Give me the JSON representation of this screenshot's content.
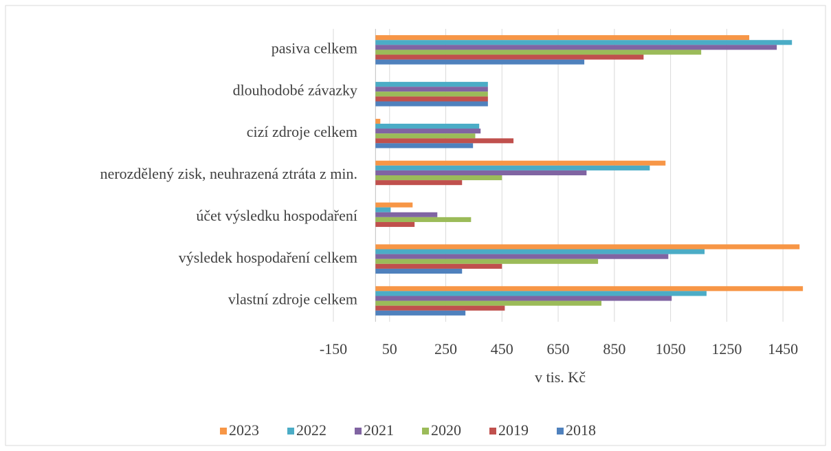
{
  "chart_data": {
    "type": "hbar",
    "xlabel": "v tis. Kč",
    "categories": [
      "vlastní zdroje celkem",
      "výsledek hospodaření celkem",
      "účet výsledku hospodaření",
      "nerozdělený zisk, neuhrazená ztráta z min.",
      "cizí zdroje celkem",
      "dlouhodobé závazky",
      "pasiva celkem"
    ],
    "series": [
      {
        "name": "2023",
        "color": "#f79646",
        "values": [
          1521,
          1509,
          132,
          1032,
          17,
          0,
          1330
        ]
      },
      {
        "name": "2022",
        "color": "#4bacc6",
        "values": [
          1178,
          1171,
          54,
          976,
          369,
          400,
          1482
        ]
      },
      {
        "name": "2021",
        "color": "#8064a2",
        "values": [
          1054,
          1042,
          220,
          751,
          374,
          400,
          1428
        ]
      },
      {
        "name": "2020",
        "color": "#9bbb59",
        "values": [
          804,
          792,
          340,
          450,
          355,
          400,
          1159
        ]
      },
      {
        "name": "2019",
        "color": "#c0504d",
        "values": [
          460,
          450,
          139,
          308,
          491,
          400,
          954
        ]
      },
      {
        "name": "2018",
        "color": "#4f81bd",
        "values": [
          320,
          308,
          0,
          0,
          347,
          400,
          743
        ]
      }
    ],
    "xlim": [
      -150,
      1550
    ],
    "xticks": [
      -150,
      50,
      250,
      450,
      650,
      850,
      1050,
      1250,
      1450
    ],
    "grid": true,
    "legend": "bottom"
  }
}
